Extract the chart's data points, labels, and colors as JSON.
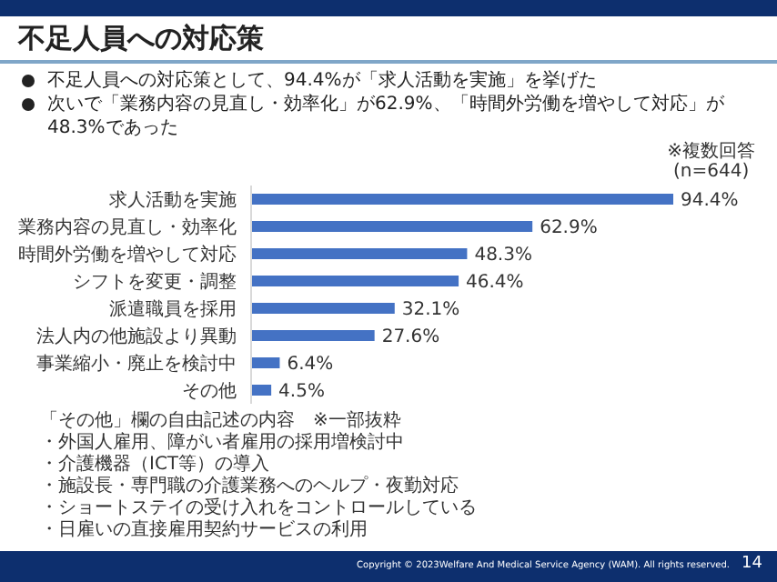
{
  "chart_data": {
    "type": "bar",
    "orientation": "horizontal",
    "title": "不足人員への対応策",
    "categories": [
      "求人活動を実施",
      "業務内容の見直し・効率化",
      "時間外労働を増やして対応",
      "シフトを変更・調整",
      "派遣職員を採用",
      "法人内の他施設より異動",
      "事業縮小・廃止を検討中",
      "その他"
    ],
    "values": [
      94.4,
      62.9,
      48.3,
      46.4,
      32.1,
      27.6,
      6.4,
      4.5
    ],
    "value_labels": [
      "94.4%",
      "62.9%",
      "48.3%",
      "46.4%",
      "32.1%",
      "27.6%",
      "6.4%",
      "4.5%"
    ],
    "color": "#4472c4",
    "grid": false,
    "legend": false,
    "tick_labels": "y",
    "annotations": [
      "不足人員への対応策として、94.4%が「求人活動を実施」を挙げた",
      "次いで「業務内容の見直し・効率化」が62.9%、「時間外労働を増やして対応」が48.3%であった",
      "※複数回答",
      "(n=644)",
      "「その他」欄の自由記述の内容　※一部抜粋",
      "・外国人雇用、障がい者雇用の採用増検討中",
      "・介護機器（ICT等）の導入",
      "・施設長・専門職の介護業務へのヘルプ・夜勤対応",
      "・ショートステイの受け入れをコントロールしている",
      "・日雇いの直接雇用契約サービスの利用",
      "Copyright © 2023Welfare And Medical Service Agency (WAM). All rights reserved.",
      "14"
    ]
  }
}
